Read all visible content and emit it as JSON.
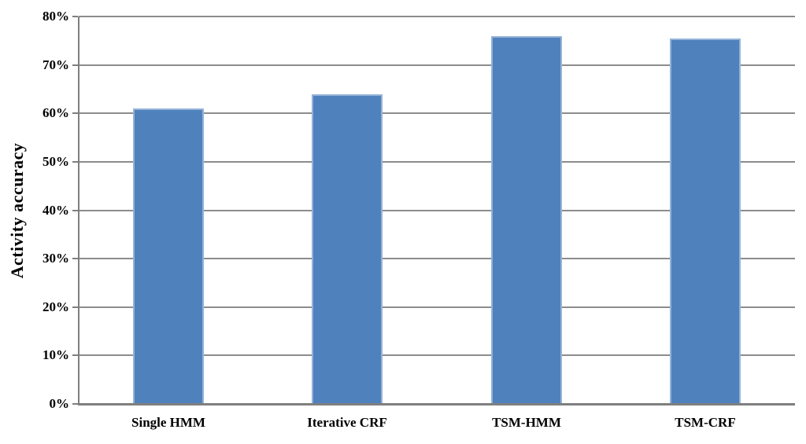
{
  "chart_data": {
    "type": "bar",
    "categories": [
      "Single HMM",
      "Iterative CRF",
      "TSM-HMM",
      "TSM-CRF"
    ],
    "values": [
      61,
      64,
      76,
      75.5
    ],
    "title": "",
    "xlabel": "",
    "ylabel": "Activity accuracy",
    "ylim": [
      0,
      80
    ],
    "ytick_step": 10,
    "ytick_labels": [
      "0%",
      "10%",
      "20%",
      "30%",
      "40%",
      "50%",
      "60%",
      "70%",
      "80%"
    ],
    "grid": true,
    "legend_position": "none",
    "colors": {
      "bar_fill": "#4f81bd",
      "bar_border": "#95b3d7",
      "gridline": "#8c8c8c",
      "axis": "#7f7f7f",
      "text": "#000000",
      "background": "#ffffff"
    }
  }
}
